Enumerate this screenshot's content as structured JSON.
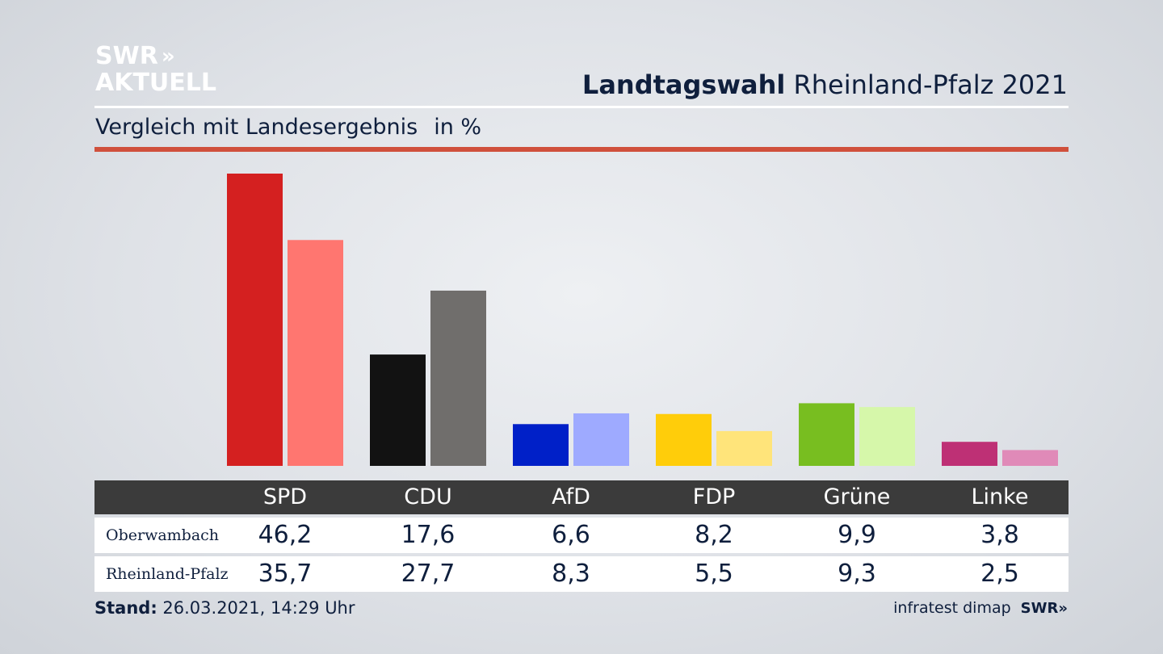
{
  "logo": {
    "line1": "SWR",
    "line2": "AKTUELL"
  },
  "header": {
    "title_bold": "Landtagswahl",
    "title_regular": "Rheinland-Pfalz 2021"
  },
  "subtitle": {
    "text": "Vergleich mit Landesergebnis",
    "unit": "in %"
  },
  "footer": {
    "stand_label": "Stand:",
    "stand_value": "26.03.2021, 14:29 Uhr",
    "source": "infratest dimap",
    "brand": "SWR"
  },
  "colors": {
    "accent_rule": "#d0503c",
    "SPD": [
      "#d42020",
      "#ff7670"
    ],
    "CDU": [
      "#121212",
      "#706e6c"
    ],
    "AfD": [
      "#0020c8",
      "#9eaaff"
    ],
    "FDP": [
      "#ffcd0a",
      "#ffe47a"
    ],
    "Grüne": [
      "#78be20",
      "#d6f7aa"
    ],
    "Linke": [
      "#be3075",
      "#e08ab8"
    ]
  },
  "chart_data": {
    "type": "bar",
    "categories": [
      "SPD",
      "CDU",
      "AfD",
      "FDP",
      "Grüne",
      "Linke"
    ],
    "series": [
      {
        "name": "Oberwambach",
        "values": [
          46.2,
          17.6,
          6.6,
          8.2,
          9.9,
          3.8
        ],
        "labels": [
          "46,2",
          "17,6",
          "6,6",
          "8,2",
          "9,9",
          "3,8"
        ]
      },
      {
        "name": "Rheinland-Pfalz",
        "values": [
          35.7,
          27.7,
          8.3,
          5.5,
          9.3,
          2.5
        ],
        "labels": [
          "35,7",
          "27,7",
          "8,3",
          "5,5",
          "9,3",
          "2,5"
        ]
      }
    ],
    "ylim": [
      0,
      46.2
    ],
    "grid": false,
    "legend": "table-below"
  }
}
